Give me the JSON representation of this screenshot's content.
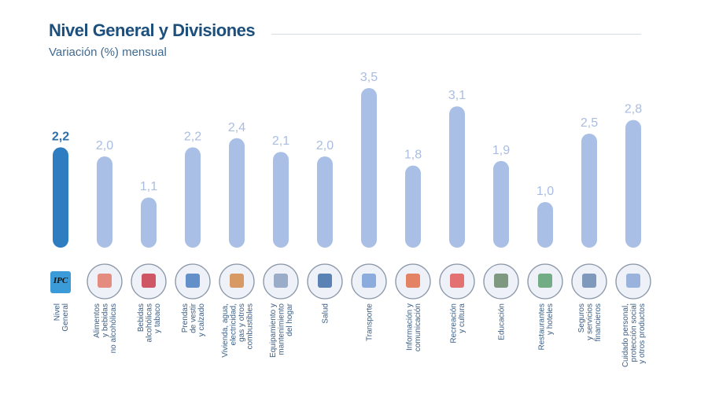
{
  "chart_data": {
    "type": "bar",
    "title": "Nivel General y Divisiones",
    "subtitle": "Variación (%) mensual",
    "ylim": [
      0,
      3.5
    ],
    "grid": false,
    "categories": [
      [
        "Nivel",
        "General"
      ],
      [
        "Alimentos",
        "y bebidas",
        "no alcohólicas"
      ],
      [
        "Bebidas",
        "alcohólicas",
        "y tabaco"
      ],
      [
        "Prendas",
        "de vestir",
        "y calzado"
      ],
      [
        "Vivienda, agua,",
        "electricidad,",
        "gas y otros",
        "combustibles"
      ],
      [
        "Equipamiento y",
        "mantenimiento",
        "del hogar"
      ],
      [
        "Salud"
      ],
      [
        "Transporte"
      ],
      [
        "Información y",
        "comunicación"
      ],
      [
        "Recreación",
        "y cultura"
      ],
      [
        "Educación"
      ],
      [
        "Restaurantes",
        "y hoteles"
      ],
      [
        "Seguros",
        "y servicios",
        "financieros"
      ],
      [
        "Cuidado personal,",
        "protección social",
        "y otros productos"
      ]
    ],
    "values": [
      2.2,
      2.0,
      1.1,
      2.2,
      2.4,
      2.1,
      2.0,
      3.5,
      1.8,
      3.1,
      1.9,
      1.0,
      2.5,
      2.8
    ],
    "value_labels": [
      "2,2",
      "2,0",
      "1,1",
      "2,2",
      "2,4",
      "2,1",
      "2,0",
      "3,5",
      "1,8",
      "3,1",
      "1,9",
      "1,0",
      "2,5",
      "2,8"
    ],
    "icons": [
      "ipc-ba-logo",
      "food-icon",
      "wine-icon",
      "clothing-icon",
      "house-icon",
      "washing-machine-icon",
      "health-icon",
      "transport-icon",
      "laptop-icon",
      "popcorn-icon",
      "school-icon",
      "restaurant-icon",
      "bank-icon",
      "personal-care-icon"
    ],
    "colors": {
      "highlight": "#2e7dc0",
      "bars": "#a9bfe6",
      "highlight_label": "#2e6fa8",
      "labels": "#a9bde0",
      "title": "#1d4f7c"
    }
  }
}
